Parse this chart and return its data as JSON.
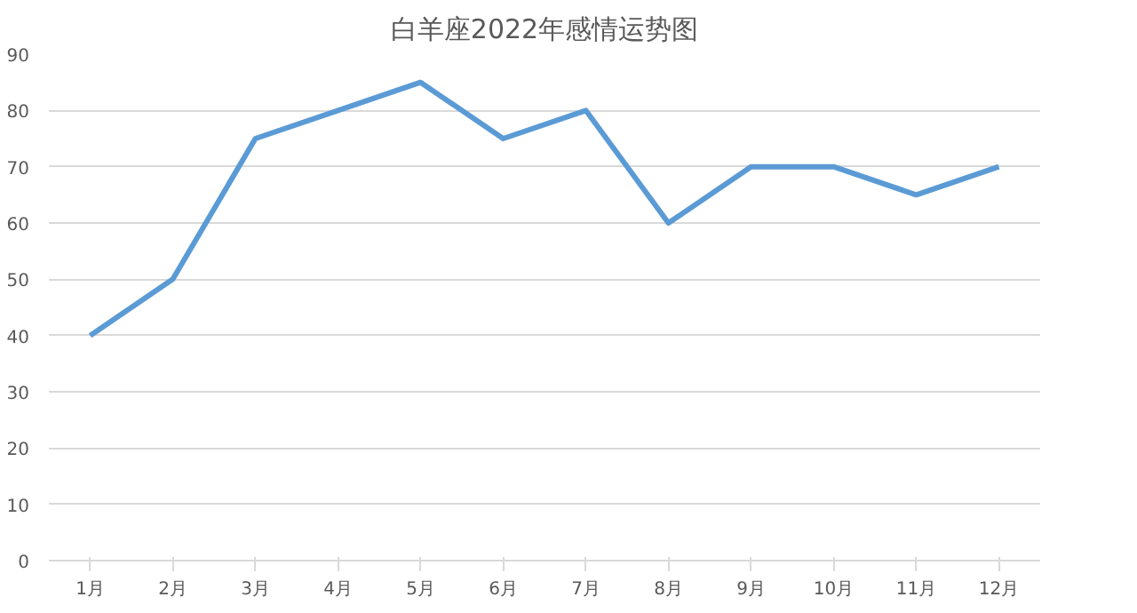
{
  "chart_data": {
    "type": "line",
    "title": "白羊座2022年感情运势图",
    "categories": [
      "1月",
      "2月",
      "3月",
      "4月",
      "5月",
      "6月",
      "7月",
      "8月",
      "9月",
      "10月",
      "11月",
      "12月"
    ],
    "series": [
      {
        "color": "#5b9bd5",
        "values": [
          40,
          50,
          75,
          80,
          85,
          75,
          80,
          60,
          70,
          70,
          65,
          70
        ]
      }
    ],
    "ylim": [
      0,
      90
    ],
    "yticks": [
      0,
      10,
      20,
      30,
      40,
      50,
      60,
      70,
      80,
      90
    ],
    "grid": "y",
    "line_style": "solid"
  }
}
